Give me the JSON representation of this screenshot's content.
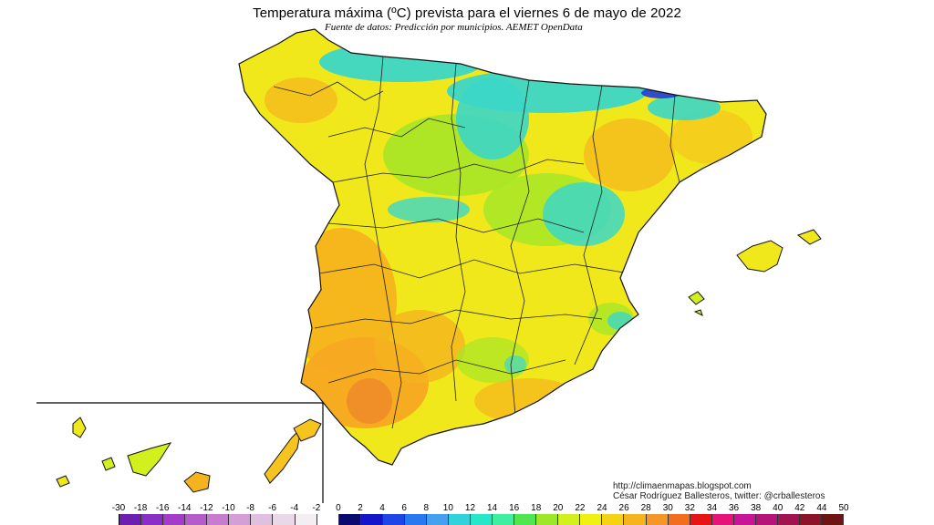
{
  "title": "Temperatura máxima (ºC) prevista para el viernes 6 de mayo de 2022",
  "subtitle": "Fuente de datos: Predicción por municipios. AEMET OpenData",
  "credits": {
    "website": "http://climaenmapas.blogspot.com",
    "author": "César Rodríguez Ballesteros, twitter: @crballesteros"
  },
  "legend": {
    "labels": [
      "-30",
      "-18",
      "-16",
      "-14",
      "-12",
      "-10",
      "-8",
      "-6",
      "-4",
      "-2",
      "0",
      "2",
      "4",
      "6",
      "8",
      "10",
      "12",
      "14",
      "16",
      "18",
      "20",
      "22",
      "24",
      "26",
      "28",
      "30",
      "32",
      "34",
      "36",
      "38",
      "40",
      "42",
      "44",
      "50"
    ],
    "colors": [
      "#6d1fb0",
      "#8a2fc6",
      "#a23cc9",
      "#b55ccb",
      "#c77ccf",
      "#d39fd6",
      "#dfc0df",
      "#e8d8e8",
      "#f2eef2",
      "#ffffff",
      "#0a0a6e",
      "#1414c8",
      "#1e46e6",
      "#2878f0",
      "#46a0f0",
      "#30d2dc",
      "#28e6c8",
      "#3cf0a0",
      "#50e650",
      "#9ee628",
      "#d2f01e",
      "#f0f014",
      "#f5d214",
      "#f5b41e",
      "#f59628",
      "#f06e1e",
      "#e61414",
      "#e61478",
      "#c81496",
      "#b41478",
      "#a01450",
      "#8c1428",
      "#6e1414"
    ]
  },
  "map_colors": {
    "cool_cyan": "#3cd7c8",
    "mid_green": "#a6e628",
    "yellow": "#f0f014",
    "orange": "#f5b41e",
    "hot_orange": "#f59628",
    "dark_blue": "#1e3cdc",
    "inset_frame": "#000000"
  }
}
